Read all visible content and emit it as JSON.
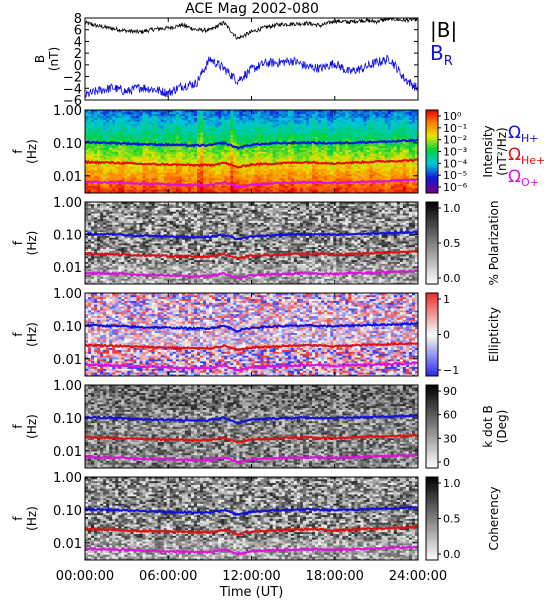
{
  "chart_data": [
    {
      "type": "line",
      "title": "ACE Mag 2002-080",
      "ylabel_lines": [
        "B",
        "(nT)"
      ],
      "ylim": [
        -6,
        8
      ],
      "yticks": [
        -6,
        -4,
        -2,
        0,
        2,
        4,
        6,
        8
      ],
      "x": [
        0,
        1,
        2,
        3,
        4,
        5,
        6,
        7,
        8,
        9,
        10,
        11,
        12,
        13,
        14,
        15,
        16,
        17,
        18,
        19,
        20,
        21,
        22,
        23,
        24
      ],
      "series": [
        {
          "name": "|B|",
          "color": "#000000",
          "values": [
            7.2,
            6.6,
            6.2,
            5.8,
            5.6,
            6.1,
            6.3,
            6.8,
            6.0,
            5.9,
            7.2,
            4.5,
            5.6,
            6.4,
            6.9,
            7.0,
            7.1,
            6.7,
            7.5,
            7.3,
            7.6,
            7.4,
            7.9,
            7.6,
            7.8
          ]
        },
        {
          "name": "B_R",
          "color": "#1010e0",
          "values": [
            -5.2,
            -4.4,
            -3.9,
            -4.6,
            -3.8,
            -4.2,
            -4.8,
            -3.6,
            -3.2,
            1.0,
            -0.6,
            -2.7,
            -0.8,
            0.3,
            0.4,
            0.7,
            -0.3,
            -0.6,
            0.3,
            -1.2,
            -0.6,
            0.4,
            1.0,
            -2.3,
            -4.1
          ]
        }
      ],
      "legend": [
        {
          "text": "|B|",
          "color": "#000000"
        },
        {
          "text": "B",
          "sub": "R",
          "color": "#1010e0"
        }
      ]
    },
    {
      "type": "heatmap",
      "ylabel_lines": [
        "f",
        "(Hz)"
      ],
      "scale": "log",
      "ylim": [
        0.003,
        1.0
      ],
      "yticks": [
        "1.00",
        "0.10",
        "0.01"
      ],
      "colorbar": {
        "label_lines": [
          "Intensity",
          "(nT²/Hz)"
        ],
        "ticks": [
          "10⁰",
          "10⁻¹",
          "10⁻²",
          "10⁻³",
          "10⁻⁴",
          "10⁻⁵",
          "10⁻⁶"
        ],
        "palette": "rainbow"
      },
      "legend": [
        {
          "text": "Ω",
          "sub": "H+",
          "color": "#1010e0"
        },
        {
          "text": "Ω",
          "sub": "He+",
          "color": "#e01010"
        },
        {
          "text": "Ω",
          "sub": "O+",
          "color": "#e010e0"
        }
      ]
    },
    {
      "type": "heatmap",
      "ylabel_lines": [
        "f",
        "(Hz)"
      ],
      "scale": "log",
      "ylim": [
        0.003,
        1.0
      ],
      "yticks": [
        "1.00",
        "0.10",
        "0.01"
      ],
      "colorbar": {
        "label_lines": [
          "% Polarization"
        ],
        "ticks": [
          "1.0",
          "0.5",
          "0.0"
        ],
        "palette": "gray-inv"
      }
    },
    {
      "type": "heatmap",
      "ylabel_lines": [
        "f",
        "(Hz)"
      ],
      "scale": "log",
      "ylim": [
        0.003,
        1.0
      ],
      "yticks": [
        "1.00",
        "0.10",
        "0.01"
      ],
      "colorbar": {
        "label_lines": [
          "Ellipticity"
        ],
        "ticks": [
          "1",
          "0",
          "−1"
        ],
        "palette": "bwr"
      }
    },
    {
      "type": "heatmap",
      "ylabel_lines": [
        "f",
        "(Hz)"
      ],
      "scale": "log",
      "ylim": [
        0.003,
        1.0
      ],
      "yticks": [
        "1.00",
        "0.10",
        "0.01"
      ],
      "colorbar": {
        "label_lines": [
          "k dot B",
          "(Deg)"
        ],
        "ticks": [
          "90",
          "60",
          "30",
          "0"
        ],
        "palette": "gray-inv"
      }
    },
    {
      "type": "heatmap",
      "ylabel_lines": [
        "f",
        "(Hz)"
      ],
      "scale": "log",
      "ylim": [
        0.003,
        1.0
      ],
      "yticks": [
        "1.00",
        "0.10",
        "0.01"
      ],
      "colorbar": {
        "label_lines": [
          "Coherency"
        ],
        "ticks": [
          "1.0",
          "0.5",
          "0.0"
        ],
        "palette": "gray-inv"
      }
    }
  ],
  "gyrofrequency_hz": {
    "x": [
      0,
      2,
      4,
      6,
      8,
      9,
      10,
      11,
      12,
      14,
      16,
      18,
      20,
      22,
      24
    ],
    "H+": [
      0.105,
      0.1,
      0.092,
      0.088,
      0.083,
      0.085,
      0.1,
      0.07,
      0.088,
      0.098,
      0.102,
      0.098,
      0.105,
      0.11,
      0.12
    ],
    "He+": [
      0.026,
      0.025,
      0.023,
      0.022,
      0.021,
      0.021,
      0.025,
      0.018,
      0.022,
      0.024,
      0.026,
      0.024,
      0.026,
      0.028,
      0.03
    ],
    "O+": [
      0.0066,
      0.0063,
      0.0058,
      0.0055,
      0.0052,
      0.0053,
      0.0063,
      0.0045,
      0.0055,
      0.0061,
      0.0064,
      0.0061,
      0.0066,
      0.007,
      0.0075
    ]
  },
  "x_axis": {
    "ticks": [
      0,
      6,
      12,
      18,
      24
    ],
    "tick_labels": [
      "00:00:00",
      "06:00:00",
      "12:00:00",
      "18:00:00",
      "24:00:00"
    ],
    "label": "Time (UT)"
  }
}
